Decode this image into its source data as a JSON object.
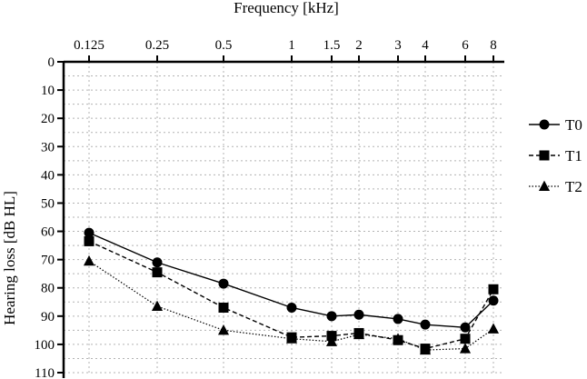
{
  "chart_data": {
    "type": "line",
    "title": "Frequency [kHz]",
    "xlabel": "",
    "ylabel": "Hearing loss [dB HL]",
    "x_scale": "log",
    "x_axis_position": "top",
    "y_inverted": true,
    "ylim": [
      0,
      110
    ],
    "grid": true,
    "legend_position": "right",
    "x_ticks": [
      0.125,
      0.25,
      0.5,
      1,
      1.5,
      2,
      3,
      4,
      6,
      8
    ],
    "x_tick_labels": [
      "0.125",
      "0.25",
      "0.5",
      "1",
      "1.5",
      "2",
      "3",
      "4",
      "6",
      "8"
    ],
    "y_ticks": [
      0,
      10,
      20,
      30,
      40,
      50,
      60,
      70,
      80,
      90,
      100,
      110
    ],
    "y_tick_labels": [
      "0",
      "10",
      "20",
      "30",
      "40",
      "50",
      "60",
      "70",
      "80",
      "90",
      "100",
      "110"
    ],
    "series": [
      {
        "name": "T0",
        "marker": "circle",
        "line_style": "solid",
        "x": [
          0.125,
          0.25,
          0.5,
          1,
          1.5,
          2,
          3,
          4,
          6,
          8
        ],
        "values": [
          60.5,
          71,
          78.5,
          87,
          90,
          89.5,
          91,
          93,
          94,
          84.5
        ]
      },
      {
        "name": "T1",
        "marker": "square",
        "line_style": "dashed",
        "x": [
          0.125,
          0.25,
          0.5,
          1,
          1.5,
          2,
          3,
          4,
          6,
          8
        ],
        "values": [
          63.5,
          74.5,
          87,
          97.5,
          97,
          96,
          98.5,
          101.5,
          98,
          80.5
        ]
      },
      {
        "name": "T2",
        "marker": "triangle",
        "line_style": "dotted",
        "x": [
          0.125,
          0.25,
          0.5,
          1,
          1.5,
          2,
          3,
          4,
          6,
          8
        ],
        "values": [
          70.5,
          86.5,
          95,
          98,
          99,
          96.5,
          98,
          102,
          101.5,
          94.5
        ]
      }
    ]
  }
}
